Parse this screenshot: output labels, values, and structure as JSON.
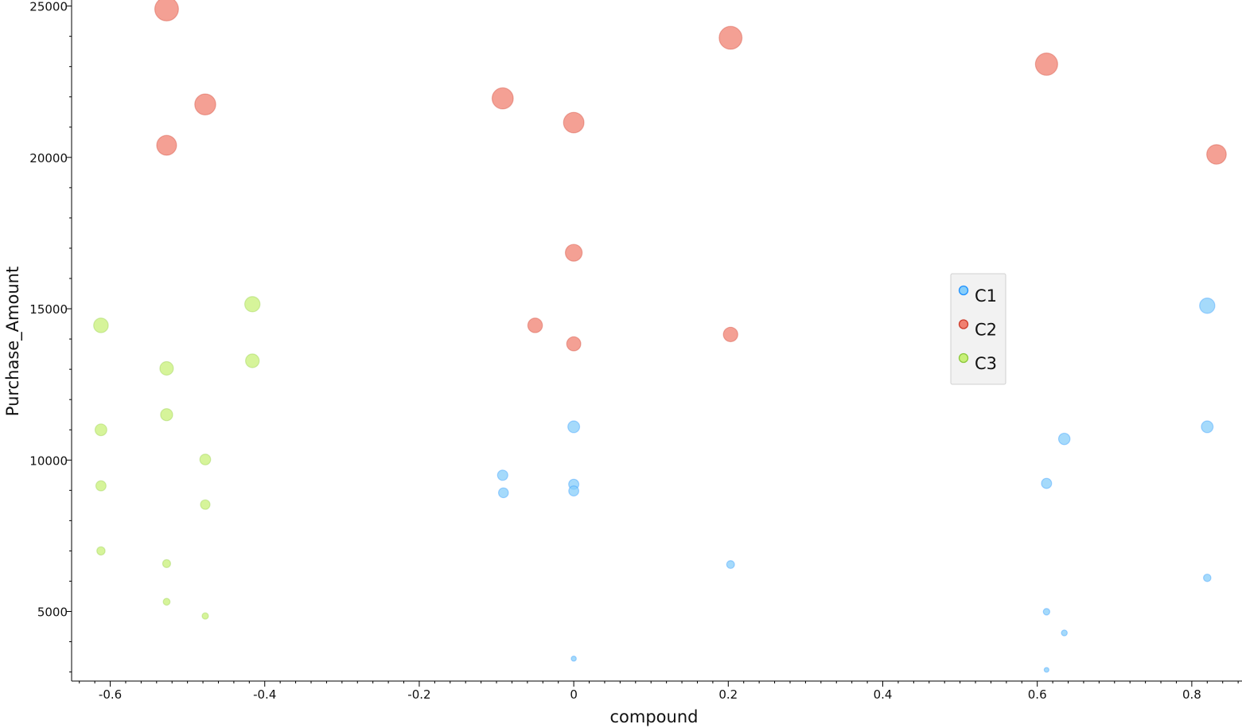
{
  "chart_data": {
    "type": "scatter",
    "title": "",
    "xlabel": "compound",
    "ylabel": "Purchase_Amount",
    "xlim": [
      -0.65,
      0.865
    ],
    "ylim": [
      2700,
      25200
    ],
    "x_ticks": [
      -0.6,
      -0.4,
      -0.2,
      0,
      0.2,
      0.4,
      0.6,
      0.8
    ],
    "x_tick_labels": [
      "-0.6",
      "-0.4",
      "-0.2",
      "0",
      "0.2",
      "0.4",
      "0.6",
      "0.8"
    ],
    "y_ticks": [
      5000,
      10000,
      15000,
      20000,
      25000
    ],
    "y_tick_labels": [
      "5000",
      "10000",
      "15000",
      "20000",
      "25000"
    ],
    "grid": false,
    "legend_position": "center-right",
    "series": [
      {
        "name": "C1",
        "color": "#87cefa",
        "edge": "#1e90ff",
        "points": [
          {
            "x": -0.092,
            "y": 9500
          },
          {
            "x": -0.091,
            "y": 8920
          },
          {
            "x": 0.0,
            "y": 11100
          },
          {
            "x": 0.0,
            "y": 9200
          },
          {
            "x": 0.0,
            "y": 8980
          },
          {
            "x": 0.0,
            "y": 3440
          },
          {
            "x": 0.203,
            "y": 6550
          },
          {
            "x": 0.612,
            "y": 9230
          },
          {
            "x": 0.612,
            "y": 4990
          },
          {
            "x": 0.612,
            "y": 3070
          },
          {
            "x": 0.635,
            "y": 10700
          },
          {
            "x": 0.635,
            "y": 4290
          },
          {
            "x": 0.82,
            "y": 15100
          },
          {
            "x": 0.82,
            "y": 11100
          },
          {
            "x": 0.82,
            "y": 6110
          }
        ]
      },
      {
        "name": "C2",
        "color": "#f08070",
        "edge": "#cd3b2a",
        "points": [
          {
            "x": -0.527,
            "y": 24900
          },
          {
            "x": -0.527,
            "y": 20400
          },
          {
            "x": -0.477,
            "y": 21750
          },
          {
            "x": -0.092,
            "y": 21950
          },
          {
            "x": -0.05,
            "y": 14450
          },
          {
            "x": 0.0,
            "y": 21150
          },
          {
            "x": 0.0,
            "y": 16850
          },
          {
            "x": 0.0,
            "y": 13840
          },
          {
            "x": 0.203,
            "y": 23950
          },
          {
            "x": 0.203,
            "y": 14150
          },
          {
            "x": 0.612,
            "y": 23080
          },
          {
            "x": 0.832,
            "y": 20100
          }
        ]
      },
      {
        "name": "C3",
        "color": "#c8f078",
        "edge": "#8cc83c",
        "points": [
          {
            "x": -0.612,
            "y": 14450
          },
          {
            "x": -0.612,
            "y": 11000
          },
          {
            "x": -0.612,
            "y": 9150
          },
          {
            "x": -0.612,
            "y": 7000
          },
          {
            "x": -0.527,
            "y": 13030
          },
          {
            "x": -0.527,
            "y": 11500
          },
          {
            "x": -0.527,
            "y": 6580
          },
          {
            "x": -0.527,
            "y": 5320
          },
          {
            "x": -0.477,
            "y": 10020
          },
          {
            "x": -0.477,
            "y": 8530
          },
          {
            "x": -0.477,
            "y": 4850
          },
          {
            "x": -0.416,
            "y": 15150
          },
          {
            "x": -0.416,
            "y": 13280
          }
        ]
      }
    ]
  }
}
